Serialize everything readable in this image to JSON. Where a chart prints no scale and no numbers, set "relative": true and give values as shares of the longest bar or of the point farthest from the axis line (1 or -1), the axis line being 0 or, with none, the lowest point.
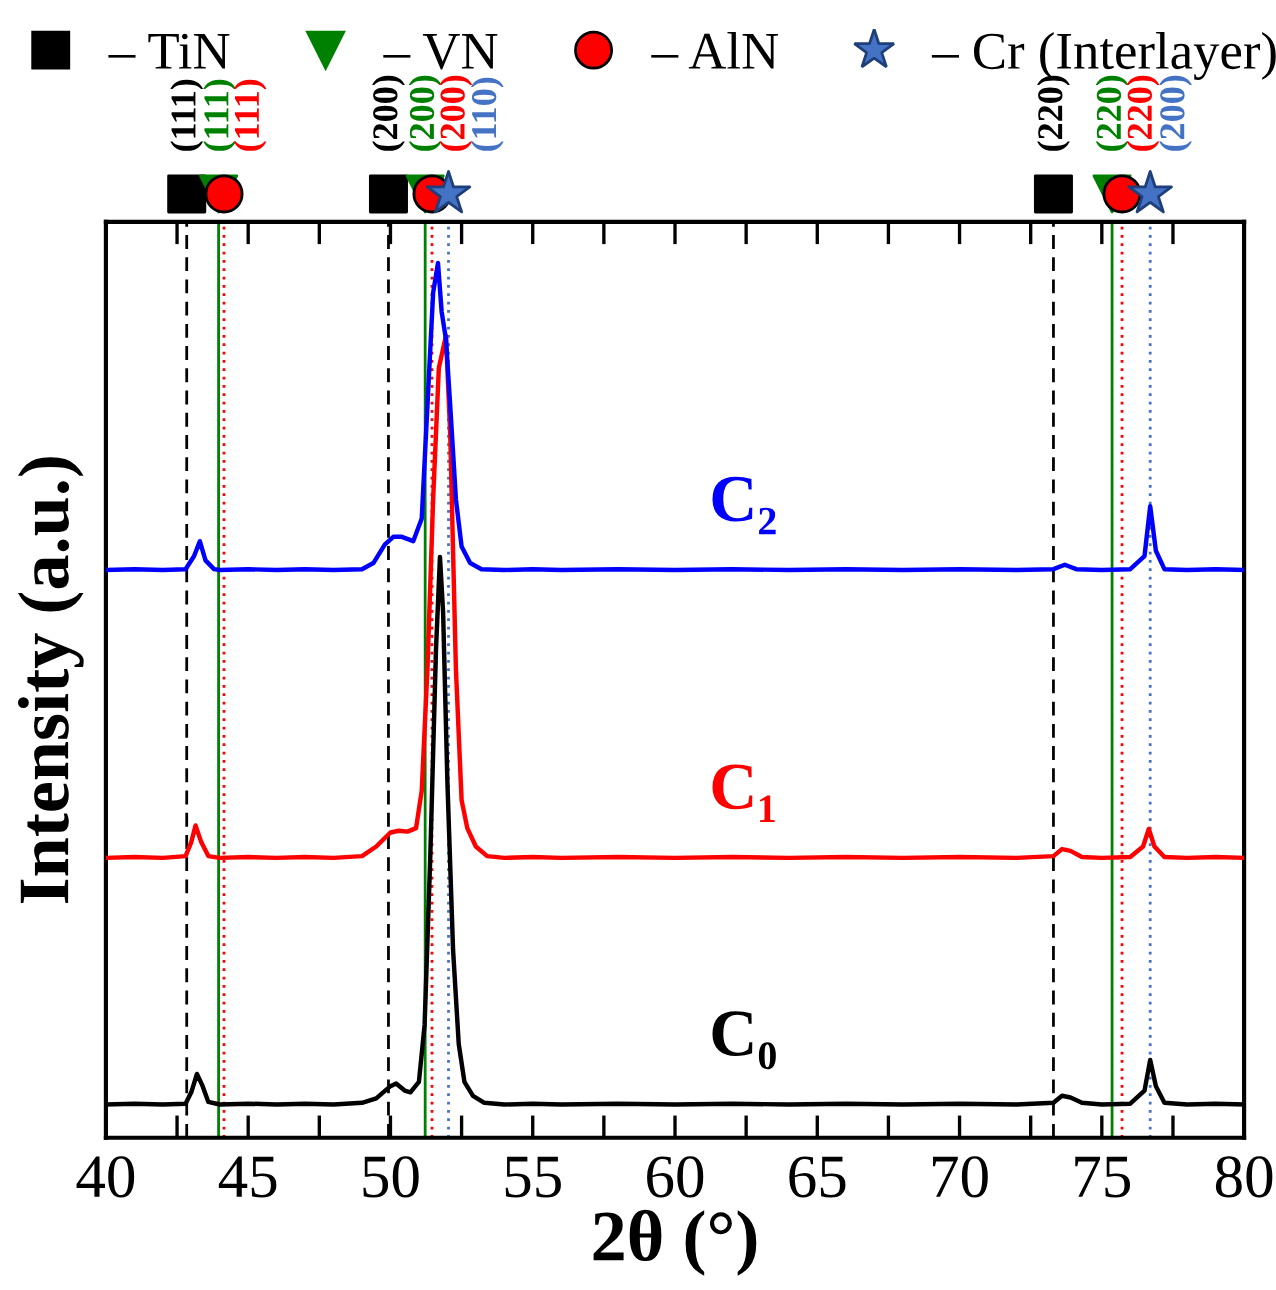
{
  "chart_data": {
    "type": "line",
    "relative": true,
    "xlabel": "2θ (°)",
    "ylabel": "Intensity (a.u.)",
    "xlim": [
      40,
      80
    ],
    "xticks": [
      40,
      {
        "value": 42.5,
        "label": null
      },
      45,
      {
        "value": 47.5,
        "label": null
      },
      50,
      {
        "value": 52.5,
        "label": null
      },
      55,
      {
        "value": 57.5,
        "label": null
      },
      60,
      {
        "value": 62.5,
        "label": null
      },
      65,
      {
        "value": 67.5,
        "label": null
      },
      70,
      {
        "value": 72.5,
        "label": null
      },
      75,
      {
        "value": 77.5,
        "label": null
      },
      80
    ],
    "legend": "top",
    "line_style": "solid",
    "series": [
      {
        "name": "C₀",
        "color": "#000000",
        "x": [
          40,
          41,
          42,
          42.8,
          43.0,
          43.2,
          43.4,
          43.6,
          44,
          45,
          46,
          47,
          48,
          49,
          49.5,
          50.0,
          50.2,
          50.5,
          50.7,
          51.0,
          51.2,
          51.4,
          51.6,
          51.74,
          51.85,
          52.0,
          52.2,
          52.4,
          52.6,
          52.9,
          53.3,
          54,
          55,
          56,
          58,
          60,
          62,
          64,
          66,
          68,
          70,
          72,
          73.3,
          73.6,
          73.9,
          74.3,
          75,
          76,
          76.5,
          76.7,
          76.9,
          77.2,
          78,
          79,
          80
        ],
        "values": [
          0.038,
          0.039,
          0.038,
          0.039,
          0.052,
          0.073,
          0.059,
          0.041,
          0.038,
          0.039,
          0.038,
          0.039,
          0.038,
          0.04,
          0.045,
          0.059,
          0.062,
          0.054,
          0.052,
          0.064,
          0.129,
          0.322,
          0.558,
          0.664,
          0.601,
          0.408,
          0.215,
          0.107,
          0.064,
          0.048,
          0.04,
          0.038,
          0.039,
          0.038,
          0.039,
          0.038,
          0.039,
          0.038,
          0.039,
          0.038,
          0.039,
          0.038,
          0.04,
          0.048,
          0.046,
          0.04,
          0.038,
          0.039,
          0.054,
          0.089,
          0.059,
          0.04,
          0.038,
          0.039,
          0.038
        ]
      },
      {
        "name": "C₁",
        "color": "#ff0000",
        "x": [
          40,
          41,
          42,
          42.8,
          43.0,
          43.15,
          43.35,
          43.6,
          44,
          45,
          46,
          47,
          48,
          49,
          49.5,
          50.0,
          50.3,
          50.6,
          50.9,
          51.1,
          51.3,
          51.5,
          51.7,
          51.95,
          52.1,
          52.3,
          52.5,
          52.7,
          53.0,
          53.4,
          54,
          55,
          56,
          58,
          60,
          62,
          64,
          66,
          68,
          70,
          72,
          73.3,
          73.6,
          73.9,
          74.3,
          75,
          76,
          76.45,
          76.65,
          76.85,
          77.2,
          78,
          79,
          80
        ],
        "values": [
          0.32,
          0.321,
          0.32,
          0.322,
          0.338,
          0.357,
          0.338,
          0.322,
          0.32,
          0.321,
          0.32,
          0.321,
          0.32,
          0.322,
          0.333,
          0.349,
          0.351,
          0.35,
          0.354,
          0.397,
          0.536,
          0.73,
          0.88,
          0.917,
          0.805,
          0.536,
          0.386,
          0.354,
          0.333,
          0.322,
          0.32,
          0.321,
          0.32,
          0.321,
          0.32,
          0.321,
          0.32,
          0.321,
          0.32,
          0.321,
          0.32,
          0.322,
          0.33,
          0.328,
          0.321,
          0.32,
          0.321,
          0.333,
          0.353,
          0.333,
          0.321,
          0.32,
          0.321,
          0.32
        ]
      },
      {
        "name": "C₂",
        "color": "#0000ff",
        "x": [
          40,
          41,
          42,
          42.8,
          43.1,
          43.3,
          43.5,
          43.8,
          44,
          45,
          46,
          47,
          48,
          49,
          49.4,
          49.8,
          50.1,
          50.4,
          50.8,
          51.1,
          51.3,
          51.5,
          51.67,
          51.8,
          51.95,
          52.1,
          52.3,
          52.5,
          52.8,
          53.2,
          54,
          55,
          56,
          58,
          60,
          62,
          64,
          66,
          68,
          70,
          72,
          73.3,
          73.7,
          74.1,
          75,
          76,
          76.5,
          76.7,
          76.9,
          77.2,
          78,
          79,
          80
        ],
        "values": [
          0.649,
          0.65,
          0.649,
          0.65,
          0.665,
          0.682,
          0.66,
          0.65,
          0.649,
          0.65,
          0.649,
          0.65,
          0.649,
          0.65,
          0.657,
          0.678,
          0.687,
          0.687,
          0.682,
          0.708,
          0.837,
          0.966,
          1,
          0.944,
          0.913,
          0.837,
          0.73,
          0.676,
          0.657,
          0.65,
          0.649,
          0.65,
          0.649,
          0.65,
          0.649,
          0.65,
          0.649,
          0.65,
          0.649,
          0.65,
          0.649,
          0.65,
          0.655,
          0.65,
          0.649,
          0.65,
          0.665,
          0.722,
          0.671,
          0.65,
          0.649,
          0.65,
          0.649
        ]
      },
      {
        "name": "– TiN",
        "type": "scatter",
        "marker": "square",
        "color": "#000000"
      },
      {
        "name": "– VN",
        "type": "scatter",
        "marker": "triangle",
        "color": "#008000"
      },
      {
        "name": "– AlN",
        "type": "scatter",
        "marker": "circle",
        "color": "#ff0000"
      },
      {
        "name": "– Cr (Interlayer)",
        "type": "scatter",
        "marker": "star",
        "color": "#4472c4"
      }
    ],
    "ref_lines": [
      {
        "axis": "x",
        "value": 42.84,
        "color": "#000000",
        "line_style": "dashed"
      },
      {
        "axis": "x",
        "value": 43.96,
        "color": "#008000",
        "line_style": "solid"
      },
      {
        "axis": "x",
        "value": 44.15,
        "color": "#ff0000",
        "line_style": "dotted"
      },
      {
        "axis": "x",
        "value": 49.93,
        "color": "#000000",
        "line_style": "dashed"
      },
      {
        "axis": "x",
        "value": 51.22,
        "color": "#008000",
        "line_style": "solid"
      },
      {
        "axis": "x",
        "value": 51.46,
        "color": "#ff0000",
        "line_style": "dotted"
      },
      {
        "axis": "x",
        "value": 52.04,
        "color": "#4472c4",
        "line_style": "dotted"
      },
      {
        "axis": "x",
        "value": 73.3,
        "color": "#000000",
        "line_style": "dashed"
      },
      {
        "axis": "x",
        "value": 75.36,
        "color": "#008000",
        "line_style": "solid"
      },
      {
        "axis": "x",
        "value": 75.71,
        "color": "#ff0000",
        "line_style": "dotted"
      },
      {
        "axis": "x",
        "value": 76.7,
        "color": "#4472c4",
        "line_style": "dotted"
      }
    ],
    "annotations": [
      "(111)",
      "(111)",
      "(111)",
      "(200)",
      "(200)",
      "(200)",
      "(110)",
      "(220)",
      "(220)",
      "(220)",
      "(200)"
    ]
  }
}
